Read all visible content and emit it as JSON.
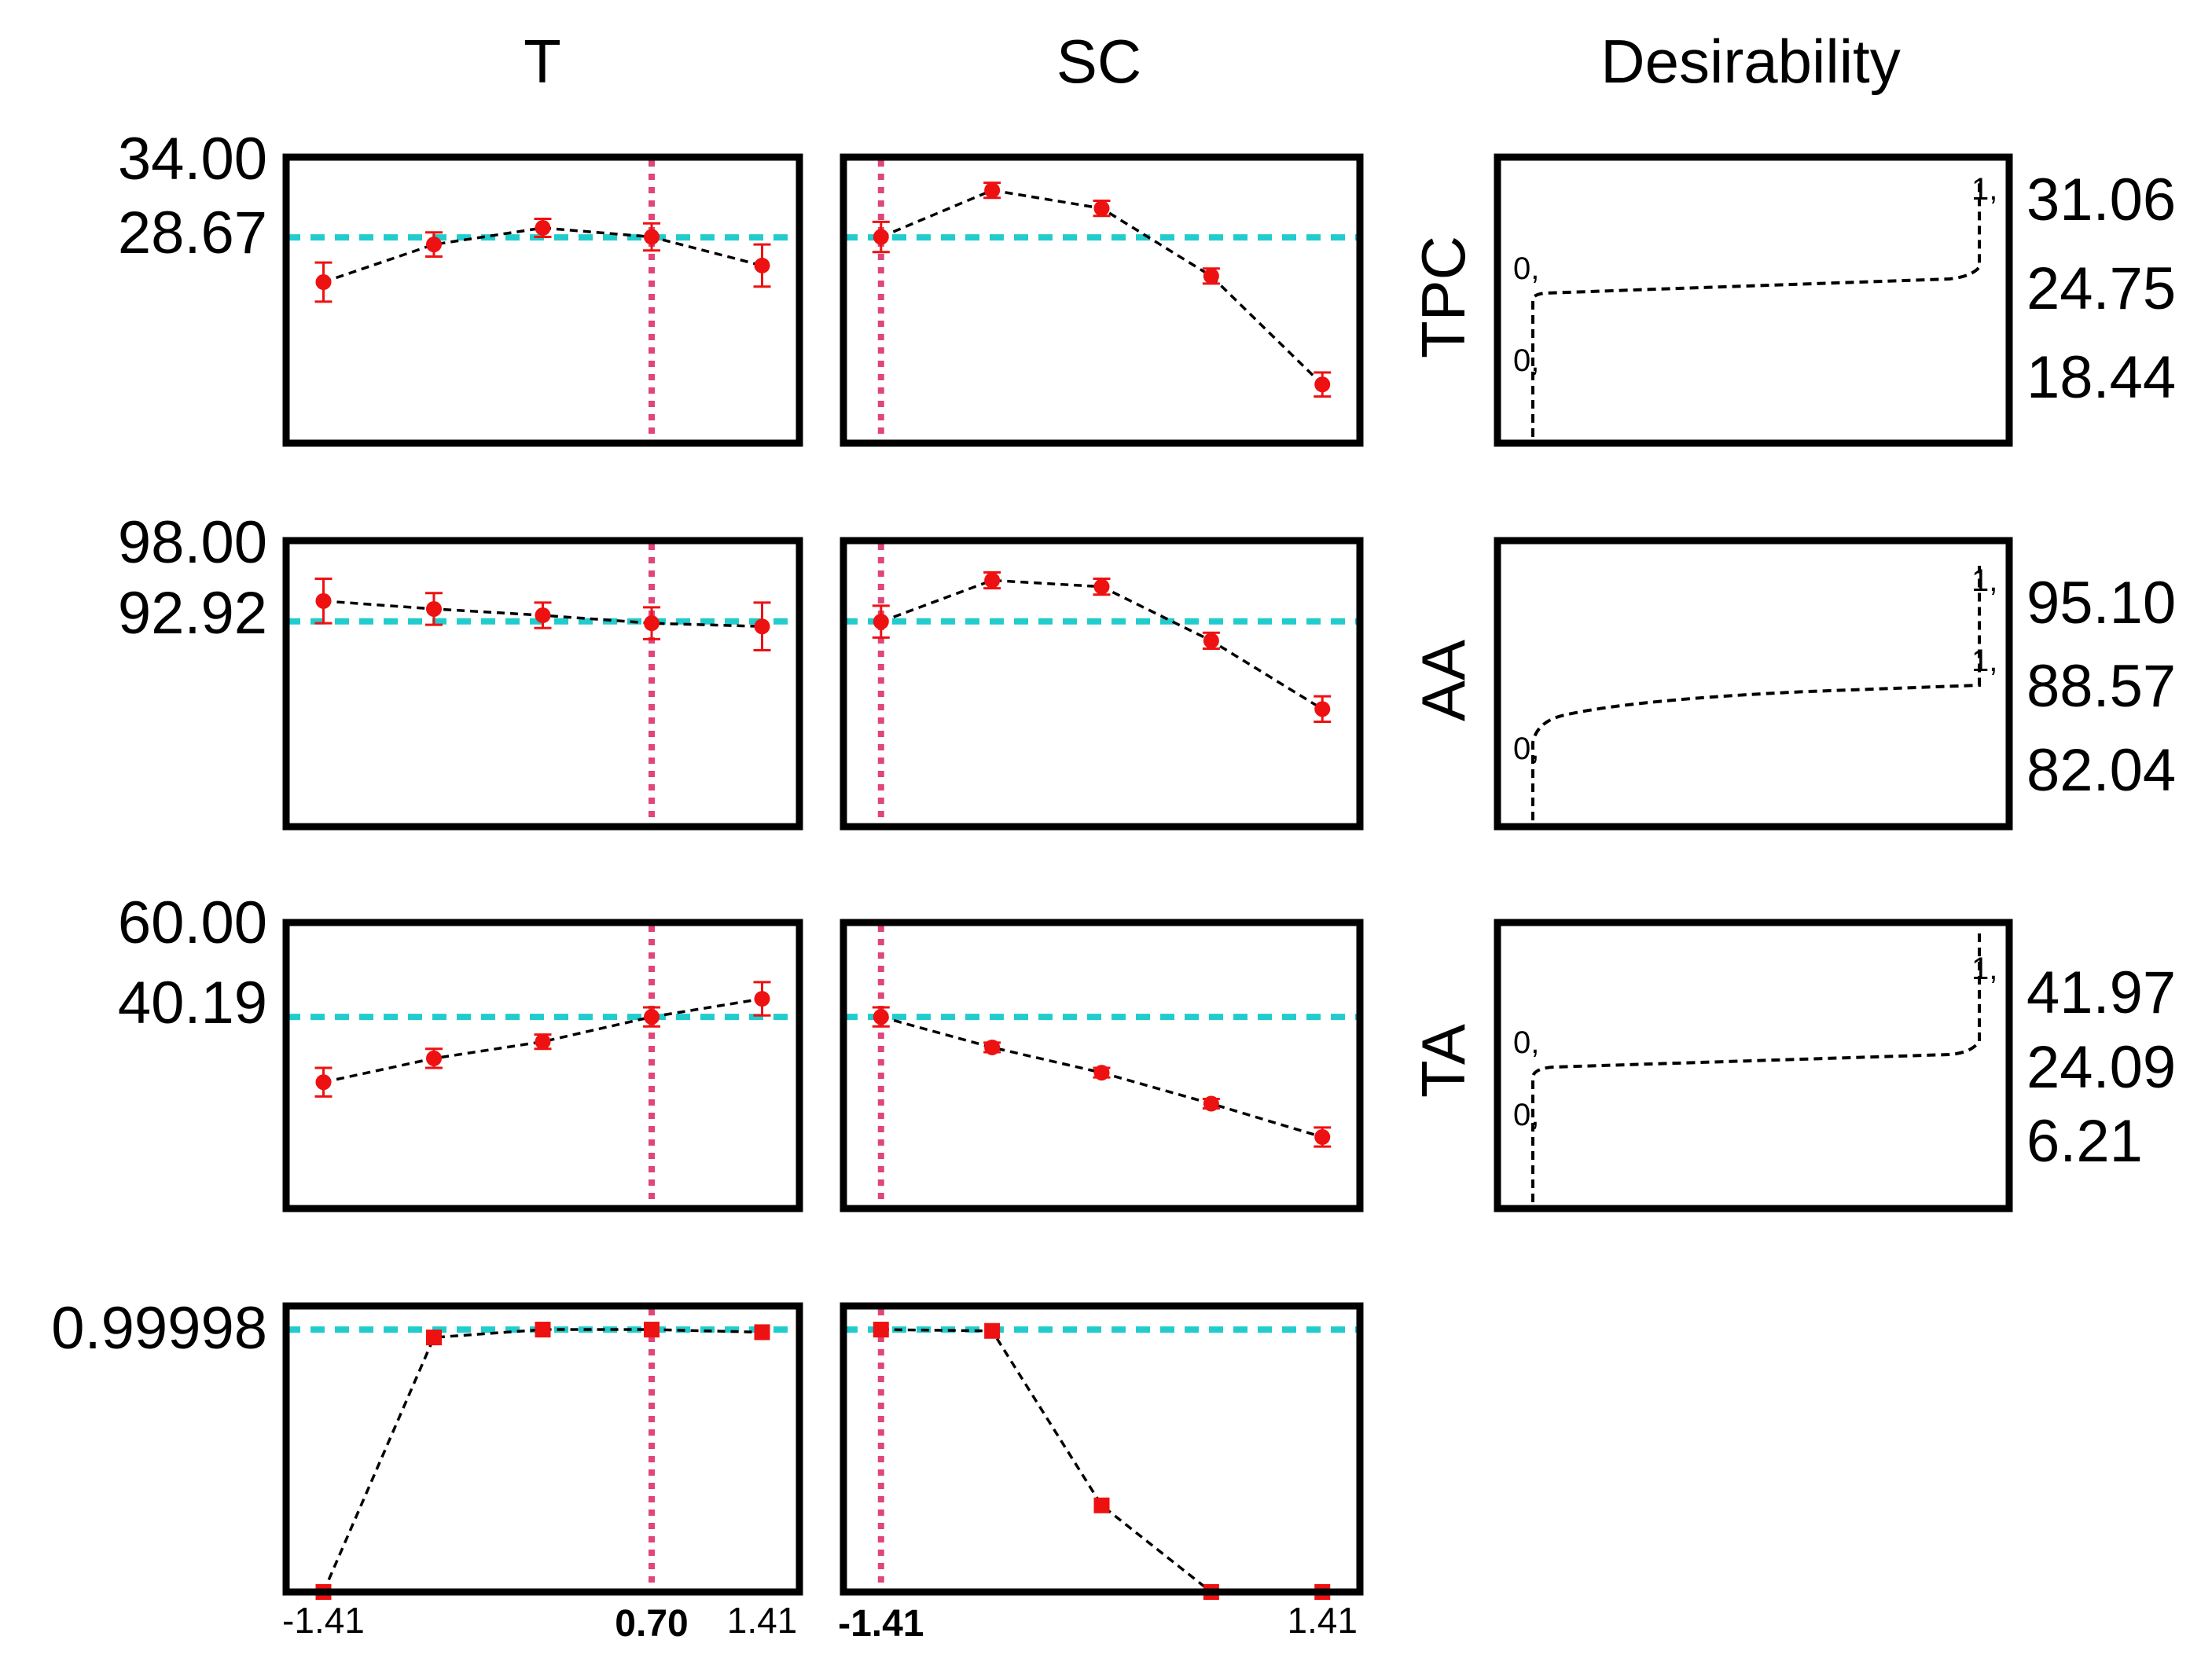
{
  "colors": {
    "frame": "#000000",
    "marker": "#ee1111",
    "target_line": "#22cccc",
    "current_setting_line": "#e0457b",
    "trend_line": "#000000"
  },
  "chart_data": {
    "type": "scatter",
    "title": "",
    "column_titles": [
      "T",
      "SC",
      "Desirability"
    ],
    "factors": [
      {
        "name": "T",
        "x": [
          -1.41,
          -0.7,
          0,
          0.7,
          1.41
        ],
        "xlim": [
          -1.65,
          1.65
        ],
        "tick_labels": [
          "-1.41",
          "1.41"
        ],
        "current_setting": 0.7,
        "current_setting_label": "0.70"
      },
      {
        "name": "SC",
        "x": [
          -1.41,
          -0.7,
          0,
          0.7,
          1.41
        ],
        "xlim": [
          -1.65,
          1.65
        ],
        "tick_labels": [
          "-1.41",
          "1.41"
        ],
        "current_setting": -1.41,
        "current_setting_label": "-1.41"
      }
    ],
    "responses": [
      {
        "name": "TPC",
        "y_top_label": "34.00",
        "y_current_label": "28.67",
        "ylim": [
          15,
          34
        ],
        "current_value": 28.67,
        "series": [
          {
            "factor": "T",
            "y": [
              25.7,
              28.2,
              29.3,
              28.7,
              26.8
            ],
            "err": [
              1.3,
              0.8,
              0.6,
              0.9,
              1.4
            ]
          },
          {
            "factor": "SC",
            "y": [
              28.7,
              31.8,
              30.6,
              26.1,
              18.9
            ],
            "err": [
              1.0,
              0.5,
              0.5,
              0.5,
              0.8
            ]
          }
        ],
        "desirability": {
          "right_tick_labels": [
            "31.06",
            "24.75",
            "18.44"
          ],
          "curve_labels": [
            "1,",
            "0,",
            "0,"
          ]
        }
      },
      {
        "name": "AA",
        "y_top_label": "98.00",
        "y_current_label": "92.92",
        "ylim": [
          80,
          98
        ],
        "current_value": 92.92,
        "series": [
          {
            "factor": "T",
            "y": [
              94.2,
              93.7,
              93.3,
              92.8,
              92.6
            ],
            "err": [
              1.4,
              1.0,
              0.8,
              1.0,
              1.5
            ]
          },
          {
            "factor": "SC",
            "y": [
              92.9,
              95.5,
              95.1,
              91.7,
              87.4
            ],
            "err": [
              1.0,
              0.5,
              0.5,
              0.5,
              0.8
            ]
          }
        ],
        "desirability": {
          "right_tick_labels": [
            "95.10",
            "88.57",
            "82.04"
          ],
          "curve_labels": [
            "1,",
            "1,",
            "0,"
          ]
        }
      },
      {
        "name": "TA",
        "y_top_label": "60.00",
        "y_current_label": "40.19",
        "ylim": [
          0,
          60
        ],
        "current_value": 40.19,
        "series": [
          {
            "factor": "T",
            "y": [
              26.5,
              31.5,
              35.0,
              40.2,
              44.0
            ],
            "err": [
              3.0,
              2.0,
              1.5,
              2.0,
              3.5
            ]
          },
          {
            "factor": "SC",
            "y": [
              40.2,
              33.8,
              28.5,
              22.0,
              15.0
            ],
            "err": [
              2.0,
              1.0,
              1.0,
              1.0,
              2.0
            ]
          }
        ],
        "desirability": {
          "right_tick_labels": [
            "41.97",
            "24.09",
            "6.21"
          ],
          "curve_labels": [
            "1,",
            "0,",
            "0,"
          ]
        }
      },
      {
        "name": "Desirability",
        "y_top_label": "",
        "y_current_label": "0.99998",
        "ylim": [
          0,
          1.09
        ],
        "current_value": 0.99998,
        "series": [
          {
            "factor": "T",
            "y": [
              0.0,
              0.97,
              1.0,
              0.99998,
              0.99
            ],
            "err": null
          },
          {
            "factor": "SC",
            "y": [
              0.99998,
              0.995,
              0.33,
              0.0,
              0.0
            ],
            "err": null
          }
        ]
      }
    ]
  }
}
